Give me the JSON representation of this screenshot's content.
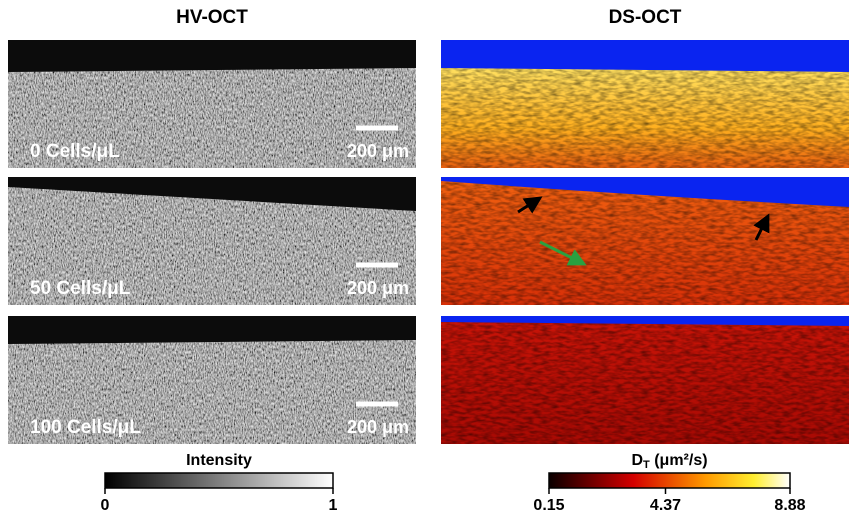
{
  "columns": [
    "HV-OCT",
    "DS-OCT"
  ],
  "rows": [
    {
      "label": "0 Cells/μL",
      "scale_bar": "200 μm"
    },
    {
      "label": "50 Cells/μL",
      "scale_bar": "200 μm"
    },
    {
      "label": "100 Cells/μL",
      "scale_bar": "200 μm"
    }
  ],
  "colorbars": [
    {
      "label": "Intensity",
      "ticks": [
        0,
        1
      ]
    },
    {
      "label": {
        "symbol": "D",
        "subscript": "T",
        "unit": "(μm²/s)"
      },
      "ticks": [
        0.15,
        4.37,
        8.88
      ]
    }
  ]
}
